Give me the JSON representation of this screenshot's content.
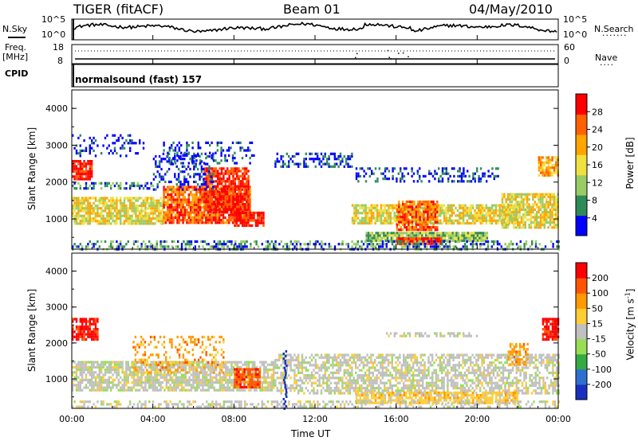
{
  "header": {
    "radar": "TIGER (fitACF)",
    "beam": "Beam 01",
    "date": "04/May/2010"
  },
  "panels": {
    "nsky_label": "N.Sky",
    "nsky_ticks": [
      "10^5",
      "10^0"
    ],
    "nsearch_label": "N.Search",
    "nsearch_ticks": [
      "10^5",
      "10^0"
    ],
    "freq_label_1": "Freq.",
    "freq_label_2": "[MHz]",
    "freq_ticks": [
      "18",
      "8"
    ],
    "nave_label": "Nave",
    "nave_ticks": [
      "60",
      "0"
    ],
    "cpid_label": "CPID",
    "cpid_text": "normalsound (fast) 157"
  },
  "chart_data": [
    {
      "type": "heatmap",
      "name": "power",
      "ylabel": "Slant Range [km]",
      "xlabel": "Time UT",
      "yticks": [
        "4000",
        "3000",
        "2000",
        "1000"
      ],
      "ylim": [
        180,
        4500
      ],
      "colorbar_label": "Power [dB]",
      "colorbar_ticks": [
        "28",
        "24",
        "20",
        "16",
        "12",
        "8",
        "4"
      ],
      "colorbar_colors": [
        "#0000ff",
        "#2e8b57",
        "#99cc66",
        "#f0e040",
        "#ffa500",
        "#ff6000",
        "#ff0000"
      ]
    },
    {
      "type": "heatmap",
      "name": "velocity",
      "ylabel": "Slant Range [km]",
      "xlabel": "Time UT",
      "yticks": [
        "4000",
        "3000",
        "2000",
        "1000"
      ],
      "ylim": [
        180,
        4500
      ],
      "colorbar_label": "Velocity [m s^-1]",
      "colorbar_ticks": [
        "200",
        "100",
        "50",
        "15",
        "-15",
        "-50",
        "-100",
        "-200"
      ],
      "colorbar_colors": [
        "#1830c0",
        "#2e6fd0",
        "#33aa44",
        "#99dd55",
        "#c0c0c0",
        "#ffcc33",
        "#ff9900",
        "#ff5500",
        "#ff0000"
      ]
    }
  ],
  "time_axis": {
    "ticks": [
      "00:00",
      "04:00",
      "08:00",
      "12:00",
      "16:00",
      "20:00",
      "00:00"
    ],
    "label": "Time UT"
  }
}
